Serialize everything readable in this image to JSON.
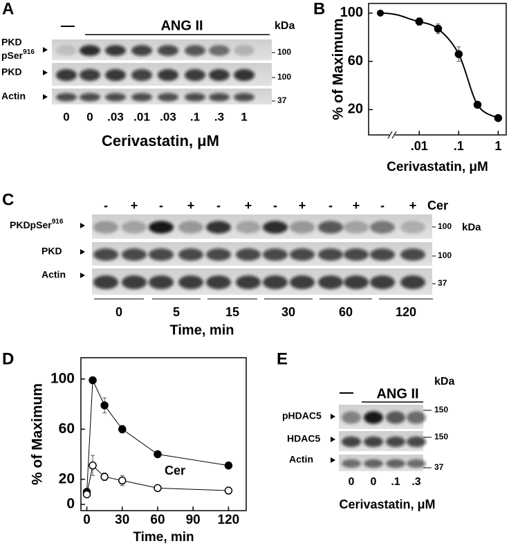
{
  "labels": {
    "a": "A",
    "b": "B",
    "c": "C",
    "d": "D",
    "e": "E"
  },
  "blot_a": {
    "control": "—",
    "treatment": "ANG II",
    "unit": "kDa",
    "rows": [
      {
        "label": "PKD",
        "label2": "pSer",
        "label_sup": "916",
        "marker": "100"
      },
      {
        "label": "PKD",
        "marker": "100"
      },
      {
        "label": "Actin",
        "marker": "37"
      }
    ],
    "lanes": [
      "0",
      "0",
      ".03",
      ".01",
      ".03",
      ".1",
      ".3",
      "1"
    ],
    "xlabel": "Cerivastatin, μM"
  },
  "blot_c": {
    "treatments": [
      "-",
      "+",
      "-",
      "+",
      "-",
      "+",
      "-",
      "+",
      "-",
      "+",
      "-",
      "+"
    ],
    "treatment_name": "Cer",
    "unit": "kDa",
    "rows": [
      {
        "label": "PKDpSer",
        "label_sup": "916",
        "marker": "100"
      },
      {
        "label": "PKD",
        "marker": "100"
      },
      {
        "label": "Actin",
        "marker": "37"
      }
    ],
    "times": [
      "0",
      "5",
      "15",
      "30",
      "60",
      "120"
    ],
    "xlabel": "Time, min"
  },
  "blot_e": {
    "control": "—",
    "treatment": "ANG II",
    "unit": "kDa",
    "rows": [
      {
        "label": "pHDAC5",
        "marker": "150"
      },
      {
        "label": "HDAC5",
        "marker": "150"
      },
      {
        "label": "Actin",
        "marker": "37"
      }
    ],
    "lanes": [
      "0",
      "0",
      ".1",
      ".3"
    ],
    "xlabel": "Cerivastatin, μM"
  },
  "chart_data": [
    {
      "type": "line",
      "ylabel": "% of Maximum",
      "xlabel": "Cerivastatin, μM",
      "log_x": true,
      "x": [
        0.01,
        0.03,
        0.1,
        0.3,
        1
      ],
      "control_value": 100,
      "series": [
        {
          "color": "#000000",
          "values": [
            93,
            87,
            66,
            24,
            13
          ],
          "errors": [
            3,
            4,
            6,
            2,
            2
          ]
        }
      ],
      "xlim": [
        0.00052,
        1.6
      ],
      "ylim": [
        -1,
        108
      ],
      "xticks": [
        {
          "value": 0.01,
          "label": ".01"
        },
        {
          "value": 0.1,
          "label": ".1"
        },
        1
      ],
      "yticks": [
        20,
        60,
        100
      ]
    },
    {
      "type": "line",
      "ylabel": "% of Maximum",
      "xlabel": "Time, min",
      "x": [
        0,
        5,
        15,
        30,
        60,
        120
      ],
      "series": [
        {
          "color": "#000000",
          "marker": "filled",
          "values": [
            10,
            99,
            79,
            60,
            40,
            31
          ],
          "errors": [
            0,
            0,
            6,
            3,
            2,
            0
          ]
        },
        {
          "name": "Cer",
          "color": "#000000",
          "marker": "open",
          "values": [
            8,
            31,
            22,
            19,
            13,
            11
          ],
          "errors": [
            0,
            8,
            3,
            4,
            0,
            0
          ]
        }
      ],
      "xlim": [
        -5,
        135
      ],
      "ylim": [
        -5,
        117
      ],
      "xticks": [
        0,
        30,
        60,
        90,
        120
      ],
      "yticks": [
        0,
        20,
        60,
        100
      ]
    }
  ]
}
